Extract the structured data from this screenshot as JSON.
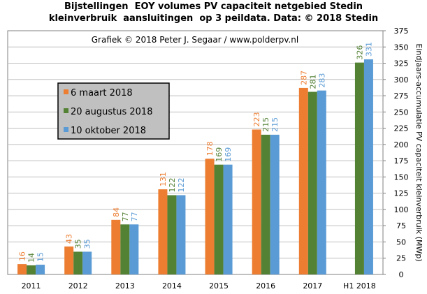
{
  "chart_data": {
    "type": "bar",
    "title": [
      "Bijstellingen  EOY volumes PV capaciteit netgebied Stedin",
      "kleinverbruik  aansluitingen  op 3 peildata. Data: © 2018 Stedin"
    ],
    "subtitle": "Grafiek  © 2018  Peter J. Segaar / www.polderpv.nl",
    "ylabel": "Eindjaars-accumulatie PV capaciteit kleinverbruik (MWp)",
    "xlabel": "",
    "categories": [
      "2011",
      "2012",
      "2013",
      "2014",
      "2015",
      "2016",
      "2017",
      "H1 2018"
    ],
    "ylim": [
      0,
      375
    ],
    "yticks": [
      0,
      25,
      50,
      75,
      100,
      125,
      150,
      175,
      200,
      225,
      250,
      275,
      300,
      325,
      350,
      375
    ],
    "grid": true,
    "legend_position": "left",
    "series": [
      {
        "name": "6 maart 2018",
        "color": "#ed7d31",
        "values": [
          16,
          43,
          84,
          131,
          178,
          223,
          287,
          null
        ]
      },
      {
        "name": "20 augustus 2018",
        "color": "#548235",
        "values": [
          14,
          35,
          77,
          122,
          169,
          215,
          281,
          326
        ]
      },
      {
        "name": "10 oktober 2018",
        "color": "#5b9bd5",
        "values": [
          15,
          35,
          77,
          122,
          169,
          215,
          283,
          331
        ]
      }
    ]
  }
}
